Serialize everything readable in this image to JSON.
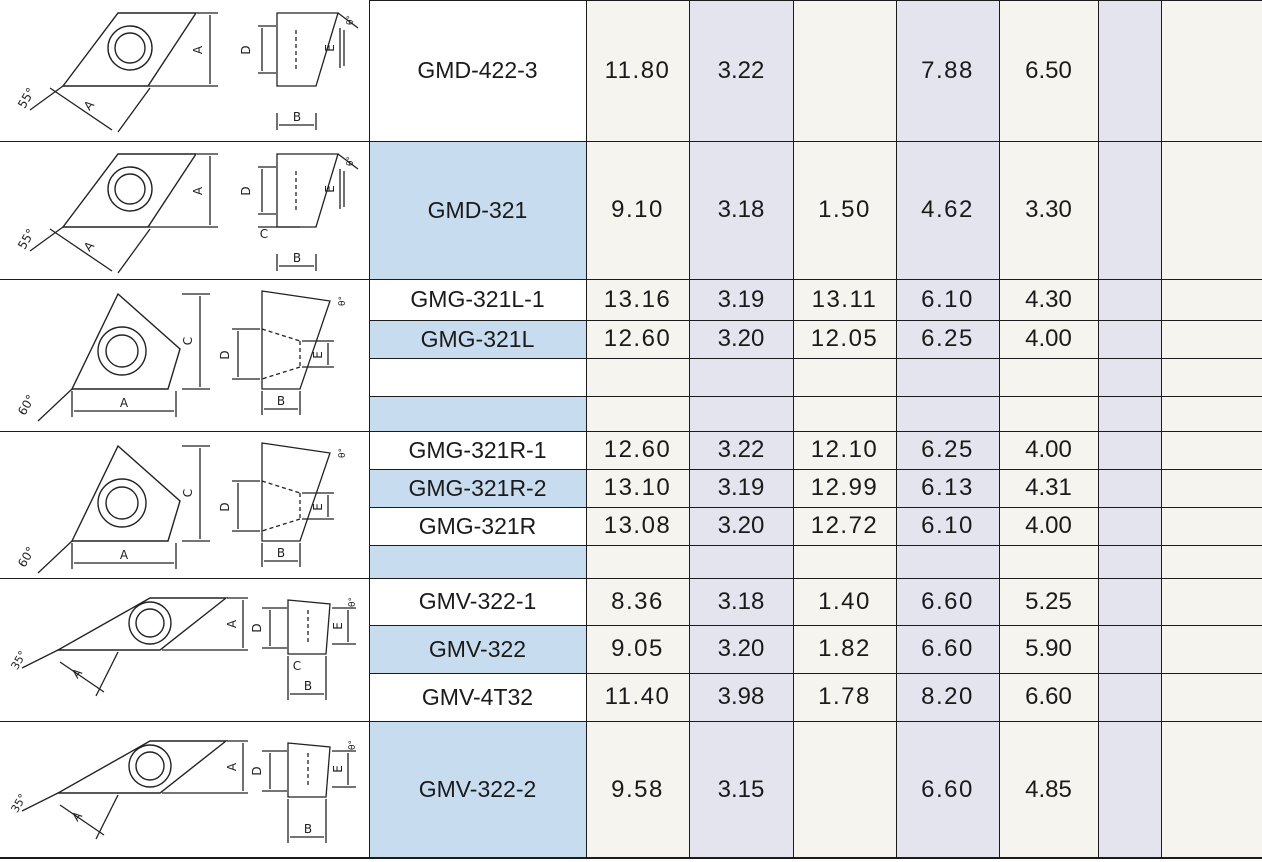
{
  "colors": {
    "bg_white": "#ffffff",
    "bg_beige": "#f5f4ef",
    "bg_lavender": "#e3e4ee",
    "bg_blue": "#c8dcf0",
    "line": "#1b1b1b"
  },
  "groups": [
    {
      "shape": "rhombus-55",
      "diagram": {
        "angle": "55°",
        "labels": [
          "A",
          "A",
          "D",
          "E",
          "B"
        ],
        "relief": "θ°"
      },
      "rows": [
        {
          "model": "GMD-422-3",
          "c1": "11.80",
          "c2": "3.22",
          "c3": "",
          "c4": "7.88",
          "c5": "6.50"
        }
      ]
    },
    {
      "shape": "rhombus-55",
      "diagram": {
        "angle": "55°",
        "labels": [
          "A",
          "A",
          "D",
          "E",
          "B",
          "C"
        ],
        "relief": "θ°"
      },
      "rows": [
        {
          "model": "GMD-321",
          "c1": "9.10",
          "c2": "3.18",
          "c3": "1.50",
          "c4": "4.62",
          "c5": "3.30"
        }
      ]
    },
    {
      "shape": "triangle-60-left",
      "diagram": {
        "angle": "60°",
        "labels": [
          "A",
          "C",
          "D",
          "E",
          "B"
        ],
        "relief": "θ°"
      },
      "rows": [
        {
          "model": "GMG-321L-1",
          "c1": "13.16",
          "c2": "3.19",
          "c3": "13.11",
          "c4": "6.10",
          "c5": "4.30"
        },
        {
          "model": "GMG-321L",
          "c1": "12.60",
          "c2": "3.20",
          "c3": "12.05",
          "c4": "6.25",
          "c5": "4.00"
        },
        {
          "model": "",
          "c1": "",
          "c2": "",
          "c3": "",
          "c4": "",
          "c5": ""
        },
        {
          "model": "",
          "c1": "",
          "c2": "",
          "c3": "",
          "c4": "",
          "c5": ""
        }
      ]
    },
    {
      "shape": "triangle-60-right",
      "diagram": {
        "angle": "60°",
        "labels": [
          "A",
          "C",
          "D",
          "E",
          "B"
        ],
        "relief": "θ°"
      },
      "rows": [
        {
          "model": "GMG-321R-1",
          "c1": "12.60",
          "c2": "3.22",
          "c3": "12.10",
          "c4": "6.25",
          "c5": "4.00"
        },
        {
          "model": "GMG-321R-2",
          "c1": "13.10",
          "c2": "3.19",
          "c3": "12.99",
          "c4": "6.13",
          "c5": "4.31"
        },
        {
          "model": "GMG-321R",
          "c1": "13.08",
          "c2": "3.20",
          "c3": "12.72",
          "c4": "6.10",
          "c5": "4.00"
        },
        {
          "model": "",
          "c1": "",
          "c2": "",
          "c3": "",
          "c4": "",
          "c5": ""
        }
      ]
    },
    {
      "shape": "rhombus-35",
      "diagram": {
        "angle": "35°",
        "labels": [
          "A",
          "A",
          "D",
          "E",
          "B",
          "C"
        ],
        "relief": "θ°"
      },
      "rows": [
        {
          "model": "GMV-322-1",
          "c1": "8.36",
          "c2": "3.18",
          "c3": "1.40",
          "c4": "6.60",
          "c5": "5.25"
        },
        {
          "model": "GMV-322",
          "c1": "9.05",
          "c2": "3.20",
          "c3": "1.82",
          "c4": "6.60",
          "c5": "5.90"
        },
        {
          "model": "GMV-4T32",
          "c1": "11.40",
          "c2": "3.98",
          "c3": "1.78",
          "c4": "8.20",
          "c5": "6.60"
        }
      ]
    },
    {
      "shape": "rhombus-35",
      "diagram": {
        "angle": "35°",
        "labels": [
          "A",
          "A",
          "D",
          "E",
          "B"
        ],
        "relief": "θ°"
      },
      "rows": [
        {
          "model": "GMV-322-2",
          "c1": "9.58",
          "c2": "3.15",
          "c3": "",
          "c4": "6.60",
          "c5": "4.85"
        }
      ]
    }
  ]
}
